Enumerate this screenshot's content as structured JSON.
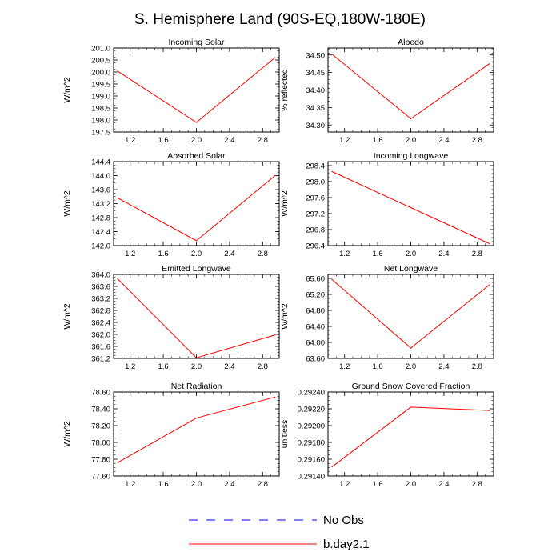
{
  "figure_title": "S. Hemisphere Land (90S-EQ,180W-180E)",
  "legend": [
    {
      "label": "No Obs",
      "color": "#0000ff",
      "dash": true
    },
    {
      "label": "b.day2.1",
      "color": "#ff0000",
      "dash": false
    }
  ],
  "colors": {
    "series": "#ff0000",
    "obs": "#0000ff",
    "axis": "#000000"
  },
  "chart_data": [
    {
      "type": "line",
      "title": "Incoming Solar",
      "ylabel": "W/m^2",
      "x": [
        1.05,
        2.0,
        2.95
      ],
      "values": [
        200.03,
        197.9,
        200.6
      ],
      "xlim": [
        1.0,
        3.0
      ],
      "ylim": [
        197.5,
        201.0
      ],
      "xticks": [
        "1.2",
        "1.6",
        "2.0",
        "2.4",
        "2.8"
      ],
      "yticks": [
        "197.5",
        "198.0",
        "198.5",
        "199.0",
        "199.5",
        "200.0",
        "200.5",
        "201.0"
      ]
    },
    {
      "type": "line",
      "title": "Albedo",
      "ylabel": "% reflected",
      "x": [
        1.05,
        2.0,
        2.95
      ],
      "values": [
        34.502,
        34.318,
        34.475
      ],
      "xlim": [
        1.0,
        3.0
      ],
      "ylim": [
        34.28,
        34.52
      ],
      "xticks": [
        "1.2",
        "1.6",
        "2.0",
        "2.4",
        "2.8"
      ],
      "yticks": [
        "34.30",
        "34.35",
        "34.40",
        "34.45",
        "34.50"
      ]
    },
    {
      "type": "line",
      "title": "Absorbed Solar",
      "ylabel": "W/m^2",
      "x": [
        1.05,
        2.0,
        2.95
      ],
      "values": [
        143.36,
        142.14,
        144.0
      ],
      "xlim": [
        1.0,
        3.0
      ],
      "ylim": [
        142.0,
        144.4
      ],
      "xticks": [
        "1.2",
        "1.6",
        "2.0",
        "2.4",
        "2.8"
      ],
      "yticks": [
        "142.0",
        "142.4",
        "142.8",
        "143.2",
        "143.6",
        "144.0",
        "144.4"
      ]
    },
    {
      "type": "line",
      "title": "Incoming Longwave",
      "ylabel": "W/m^2",
      "x": [
        1.05,
        2.0,
        2.95
      ],
      "values": [
        298.25,
        297.35,
        296.45
      ],
      "xlim": [
        1.0,
        3.0
      ],
      "ylim": [
        296.4,
        298.5
      ],
      "xticks": [
        "1.2",
        "1.6",
        "2.0",
        "2.4",
        "2.8"
      ],
      "yticks": [
        "296.4",
        "296.8",
        "297.2",
        "297.6",
        "298.0",
        "298.4"
      ]
    },
    {
      "type": "line",
      "title": "Emitted Longwave",
      "ylabel": "W/m^2",
      "x": [
        1.05,
        2.0,
        2.95
      ],
      "values": [
        363.85,
        361.22,
        361.98
      ],
      "xlim": [
        1.0,
        3.0
      ],
      "ylim": [
        361.2,
        364.0
      ],
      "xticks": [
        "1.2",
        "1.6",
        "2.0",
        "2.4",
        "2.8"
      ],
      "yticks": [
        "361.2",
        "361.6",
        "362.0",
        "362.4",
        "362.8",
        "363.2",
        "363.6",
        "364.0"
      ]
    },
    {
      "type": "line",
      "title": "Net Longwave",
      "ylabel": "W/m^2",
      "x": [
        1.05,
        2.0,
        2.95
      ],
      "values": [
        65.57,
        63.86,
        65.44
      ],
      "xlim": [
        1.0,
        3.0
      ],
      "ylim": [
        63.6,
        65.7
      ],
      "xticks": [
        "1.2",
        "1.6",
        "2.0",
        "2.4",
        "2.8"
      ],
      "yticks": [
        "63.60",
        "64.00",
        "64.40",
        "64.80",
        "65.20",
        "65.60"
      ]
    },
    {
      "type": "line",
      "title": "Net Radiation",
      "ylabel": "W/m^2",
      "x": [
        1.05,
        2.0,
        2.95
      ],
      "values": [
        77.76,
        78.29,
        78.54
      ],
      "xlim": [
        1.0,
        3.0
      ],
      "ylim": [
        77.6,
        78.6
      ],
      "xticks": [
        "1.2",
        "1.6",
        "2.0",
        "2.4",
        "2.8"
      ],
      "yticks": [
        "77.60",
        "77.80",
        "78.00",
        "78.20",
        "78.40",
        "78.60"
      ]
    },
    {
      "type": "line",
      "title": "Ground Snow Covered Fraction",
      "ylabel": "unitless",
      "x": [
        1.05,
        2.0,
        2.95
      ],
      "values": [
        0.29151,
        0.29222,
        0.29218
      ],
      "xlim": [
        1.0,
        3.0
      ],
      "ylim": [
        0.2914,
        0.2924
      ],
      "xticks": [
        "1.2",
        "1.6",
        "2.0",
        "2.4",
        "2.8"
      ],
      "yticks": [
        "0.29140",
        "0.29160",
        "0.29180",
        "0.29200",
        "0.29220",
        "0.29240"
      ]
    }
  ]
}
